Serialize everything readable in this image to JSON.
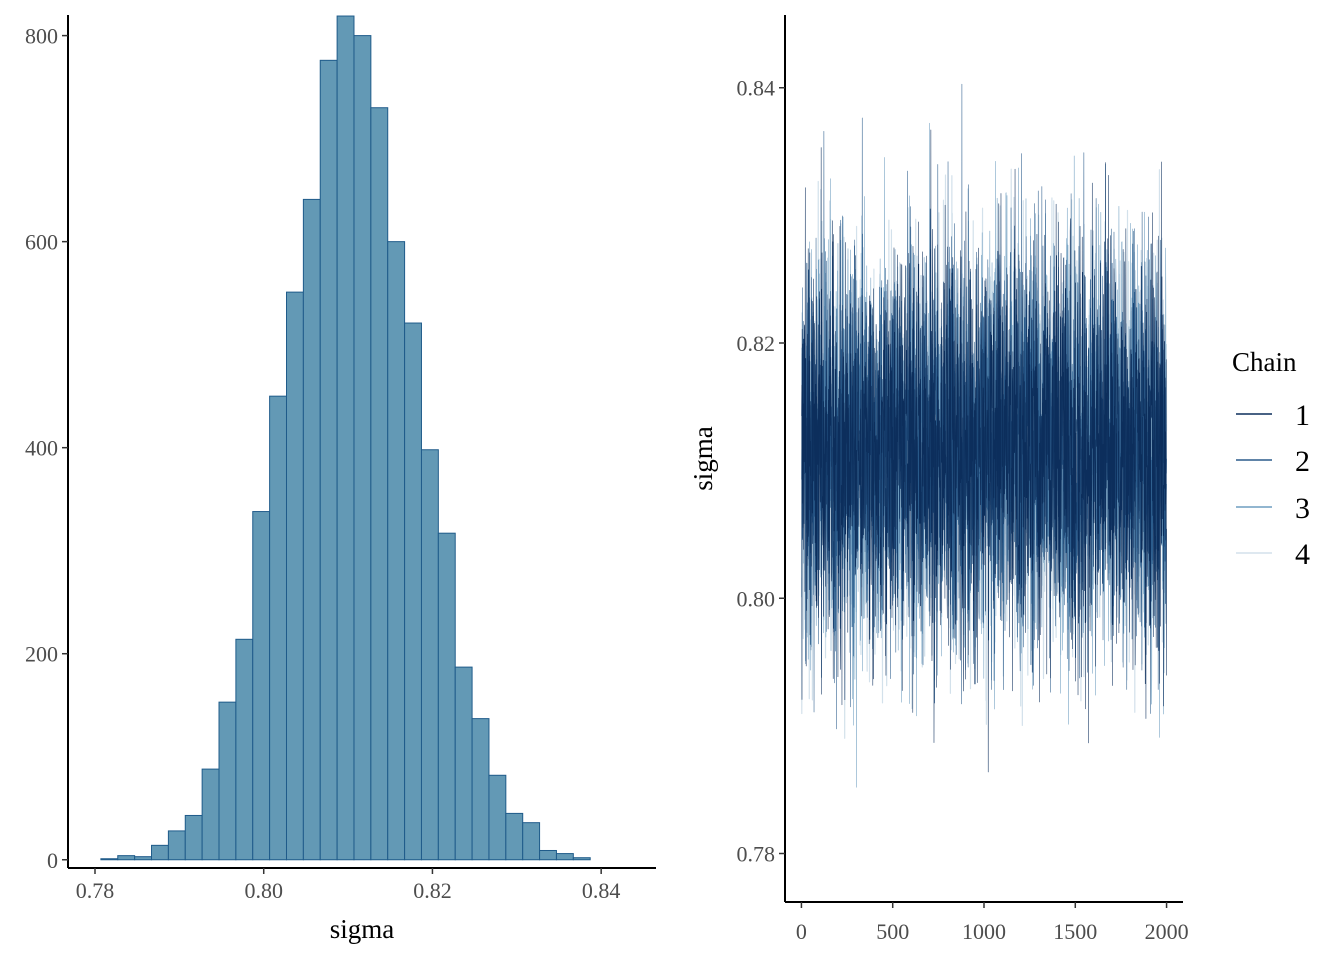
{
  "chart_data": [
    {
      "type": "bar",
      "subtype": "histogram",
      "xlabel": "sigma",
      "ylabel": "",
      "xlim": [
        0.7768,
        0.8465
      ],
      "ylim": [
        -8,
        820
      ],
      "x_ticks": [
        "0.78",
        "0.80",
        "0.82",
        "0.84"
      ],
      "y_ticks": [
        "0",
        "200",
        "400",
        "600",
        "800"
      ],
      "bin_start": 0.7807,
      "bin_width": 0.002,
      "values": [
        1,
        4,
        3,
        14,
        28,
        43,
        88,
        153,
        214,
        338,
        450,
        551,
        641,
        776,
        819,
        800,
        730,
        600,
        521,
        398,
        317,
        187,
        137,
        82,
        45,
        36,
        9,
        6,
        2
      ],
      "bar_fill": "#6399b5",
      "bar_stroke": "#1f5b8a"
    },
    {
      "type": "line",
      "subtype": "trace",
      "xlabel": "",
      "ylabel": "sigma",
      "xlim": [
        -90,
        2090
      ],
      "ylim": [
        0.7762,
        0.8457
      ],
      "x_ticks": [
        "0",
        "500",
        "1000",
        "1500",
        "2000"
      ],
      "y_ticks": [
        "0.78",
        "0.80",
        "0.82",
        "0.84"
      ],
      "iterations": 2000,
      "center": 0.8118,
      "sd": 0.0078,
      "legend": {
        "title": "Chain",
        "position": "right",
        "entries": [
          "1",
          "2",
          "3",
          "4"
        ]
      },
      "series": [
        {
          "name": "1",
          "color": "#0c2e5c"
        },
        {
          "name": "2",
          "color": "#2b5c8c"
        },
        {
          "name": "3",
          "color": "#6f9ec0"
        },
        {
          "name": "4",
          "color": "#d3e1eb"
        }
      ]
    }
  ]
}
